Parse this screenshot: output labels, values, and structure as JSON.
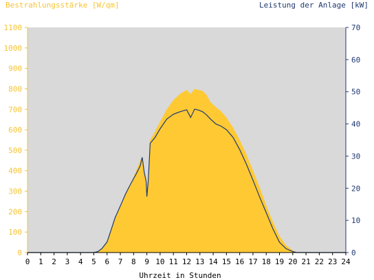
{
  "chart_data": {
    "type": "area",
    "title_left": "Bestrahlungsstärke [W/qm]",
    "title_right": "Leistung der Anlage [kW]",
    "xlabel": "Uhrzeit in Stunden",
    "xlim": [
      0,
      24
    ],
    "x_ticks": [
      "0",
      "1",
      "2",
      "3",
      "4",
      "5",
      "6",
      "7",
      "8",
      "9",
      "10",
      "11",
      "12",
      "13",
      "14",
      "15",
      "16",
      "17",
      "18",
      "19",
      "20",
      "21",
      "22",
      "23",
      "24"
    ],
    "ylim_left": [
      0,
      1100
    ],
    "y_ticks_left": [
      "0",
      "100",
      "200",
      "300",
      "400",
      "500",
      "600",
      "700",
      "800",
      "900",
      "1000",
      "1100"
    ],
    "ylim_right": [
      0,
      70
    ],
    "y_ticks_right": [
      "0",
      "10",
      "20",
      "30",
      "40",
      "50",
      "60",
      "70"
    ],
    "grid": false,
    "colors": {
      "plot_background": "#d9d9d9",
      "irradiance_fill": "#ffc933",
      "left_axis": "#f6c431",
      "right_axis": "#1f3870",
      "power_line": "#1f3870"
    },
    "series": [
      {
        "axis": "left",
        "render": "area",
        "points": [
          [
            0,
            0
          ],
          [
            5.0,
            0
          ],
          [
            5.3,
            5
          ],
          [
            5.6,
            20
          ],
          [
            6.0,
            55
          ],
          [
            6.3,
            110
          ],
          [
            6.6,
            170
          ],
          [
            7.0,
            230
          ],
          [
            7.4,
            290
          ],
          [
            7.8,
            340
          ],
          [
            8.2,
            400
          ],
          [
            8.5,
            450
          ],
          [
            8.65,
            470
          ],
          [
            8.8,
            390
          ],
          [
            8.95,
            340
          ],
          [
            9.0,
            300
          ],
          [
            9.1,
            360
          ],
          [
            9.25,
            550
          ],
          [
            9.6,
            590
          ],
          [
            10.0,
            640
          ],
          [
            10.5,
            700
          ],
          [
            11.0,
            745
          ],
          [
            11.5,
            775
          ],
          [
            12.0,
            795
          ],
          [
            12.3,
            775
          ],
          [
            12.6,
            800
          ],
          [
            12.9,
            795
          ],
          [
            13.2,
            790
          ],
          [
            13.5,
            770
          ],
          [
            13.8,
            735
          ],
          [
            14.2,
            710
          ],
          [
            14.6,
            690
          ],
          [
            15.0,
            660
          ],
          [
            15.5,
            610
          ],
          [
            16.0,
            550
          ],
          [
            16.5,
            480
          ],
          [
            17.0,
            400
          ],
          [
            17.5,
            320
          ],
          [
            18.0,
            230
          ],
          [
            18.5,
            150
          ],
          [
            19.0,
            80
          ],
          [
            19.5,
            35
          ],
          [
            20.0,
            10
          ],
          [
            20.3,
            0
          ],
          [
            24,
            0
          ]
        ]
      },
      {
        "axis": "right",
        "render": "line",
        "points": [
          [
            0,
            0
          ],
          [
            5.0,
            0
          ],
          [
            5.3,
            0.3
          ],
          [
            5.6,
            1.2
          ],
          [
            6.0,
            3.3
          ],
          [
            6.3,
            7.0
          ],
          [
            6.6,
            10.8
          ],
          [
            7.0,
            14.5
          ],
          [
            7.4,
            18.3
          ],
          [
            7.8,
            21.5
          ],
          [
            8.2,
            24.5
          ],
          [
            8.5,
            27.0
          ],
          [
            8.65,
            29.6
          ],
          [
            8.8,
            25.0
          ],
          [
            8.95,
            22.0
          ],
          [
            9.0,
            17.4
          ],
          [
            9.1,
            22.0
          ],
          [
            9.25,
            34.0
          ],
          [
            9.6,
            35.7
          ],
          [
            10.0,
            38.5
          ],
          [
            10.5,
            41.5
          ],
          [
            11.0,
            43.0
          ],
          [
            11.5,
            43.8
          ],
          [
            12.0,
            44.4
          ],
          [
            12.3,
            42.0
          ],
          [
            12.6,
            44.6
          ],
          [
            12.9,
            44.3
          ],
          [
            13.2,
            43.8
          ],
          [
            13.5,
            42.8
          ],
          [
            13.8,
            41.5
          ],
          [
            14.2,
            40.0
          ],
          [
            14.6,
            39.3
          ],
          [
            15.0,
            38.2
          ],
          [
            15.5,
            35.8
          ],
          [
            16.0,
            32.0
          ],
          [
            16.5,
            27.5
          ],
          [
            17.0,
            22.5
          ],
          [
            17.5,
            17.3
          ],
          [
            18.0,
            12.4
          ],
          [
            18.5,
            7.4
          ],
          [
            19.0,
            3.2
          ],
          [
            19.5,
            1.2
          ],
          [
            20.0,
            0.3
          ],
          [
            20.3,
            0
          ],
          [
            24,
            0
          ]
        ]
      }
    ]
  }
}
